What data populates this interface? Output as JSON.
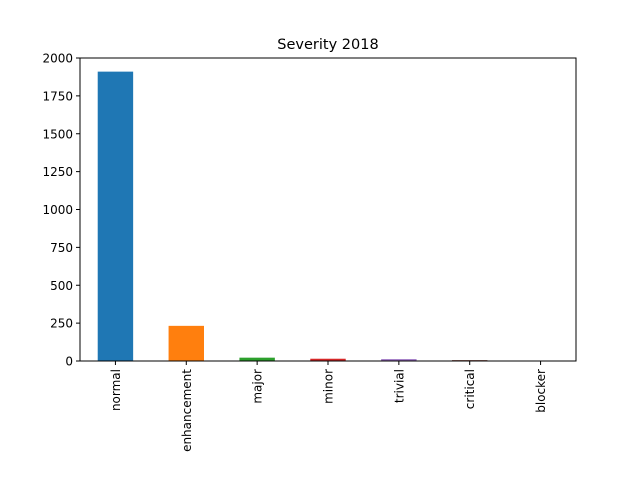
{
  "chart_data": {
    "type": "bar",
    "title": "Severity 2018",
    "xlabel": "",
    "ylabel": "",
    "categories": [
      "normal",
      "enhancement",
      "major",
      "minor",
      "trivial",
      "critical",
      "blocker"
    ],
    "values": [
      1910,
      232,
      22,
      15,
      12,
      6,
      0
    ],
    "ylim": [
      0,
      2000
    ],
    "yticks": [
      0,
      250,
      500,
      750,
      1000,
      1250,
      1500,
      1750,
      2000
    ],
    "colors": [
      "#1f77b4",
      "#ff7f0e",
      "#2ca02c",
      "#d62728",
      "#9467bd",
      "#8c564b",
      "#e377c2"
    ],
    "grid": false,
    "legend": "none"
  }
}
